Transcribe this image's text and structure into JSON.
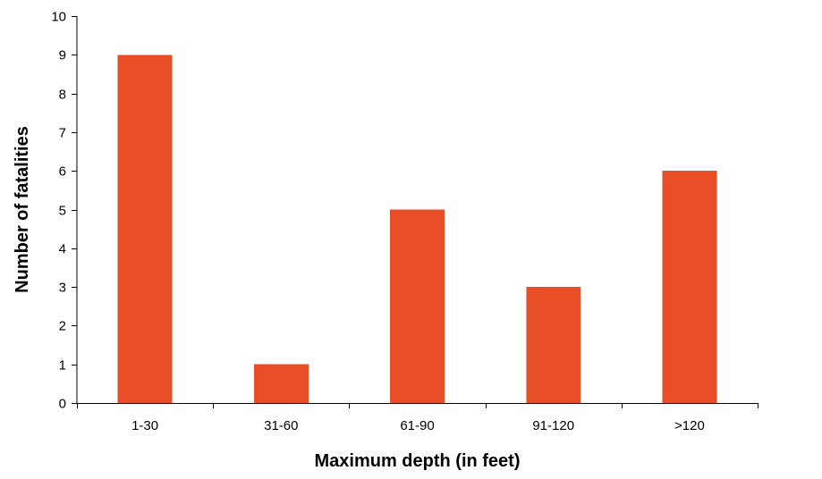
{
  "chart_data": {
    "type": "bar",
    "title": "",
    "xlabel": "Maximum depth (in feet)",
    "ylabel": "Number of fatalities",
    "categories": [
      "1-30",
      "31-60",
      "61-90",
      "91-120",
      ">120"
    ],
    "values": [
      9,
      1,
      5,
      3,
      6
    ],
    "ylim": [
      0,
      10
    ],
    "yticks": [
      0,
      1,
      2,
      3,
      4,
      5,
      6,
      7,
      8,
      9,
      10
    ],
    "grid": false,
    "legend": "none",
    "bar_color": "#E84E25"
  }
}
